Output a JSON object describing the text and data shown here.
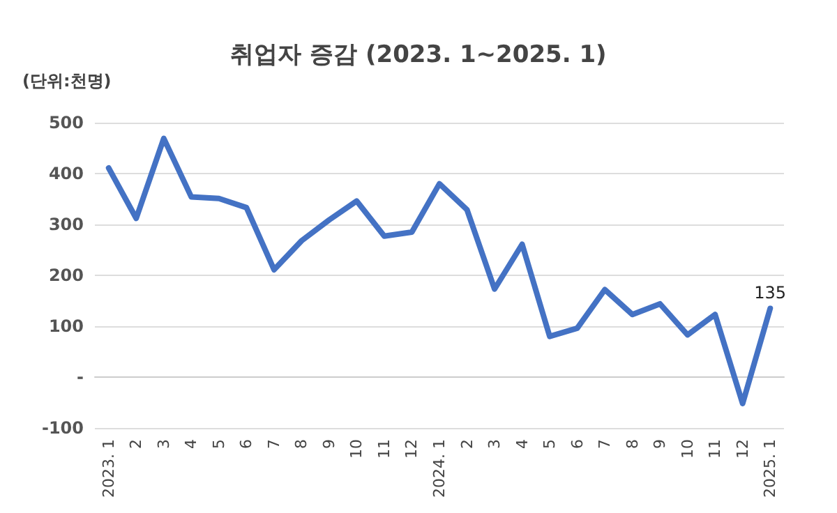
{
  "chart_data": {
    "type": "line",
    "title": "취업자 증감 (2023. 1~2025. 1)",
    "ylabel": "(단위:천명)",
    "categories": [
      "2023. 1",
      "2",
      "3",
      "4",
      "5",
      "6",
      "7",
      "8",
      "9",
      "10",
      "11",
      "12",
      "2024. 1",
      "2",
      "3",
      "4",
      "5",
      "6",
      "7",
      "8",
      "9",
      "10",
      "11",
      "12",
      "2025. 1"
    ],
    "series": [
      {
        "color": "#4472c4",
        "values": [
          411,
          312,
          469,
          354,
          351,
          333,
          211,
          268,
          309,
          346,
          277,
          285,
          380,
          329,
          173,
          261,
          80,
          96,
          172,
          123,
          144,
          83,
          123,
          -52,
          135
        ],
        "value_labels": [
          null,
          null,
          null,
          null,
          null,
          null,
          null,
          null,
          null,
          null,
          null,
          null,
          null,
          null,
          null,
          null,
          null,
          null,
          null,
          null,
          null,
          null,
          null,
          null,
          "135"
        ]
      }
    ],
    "ylim": [
      -100,
      500
    ],
    "yticks": [
      -100,
      {
        "value": 0,
        "label": "-"
      },
      100,
      200,
      300,
      400,
      500
    ],
    "grid": "y",
    "marker": "none",
    "line_style": "solid"
  }
}
